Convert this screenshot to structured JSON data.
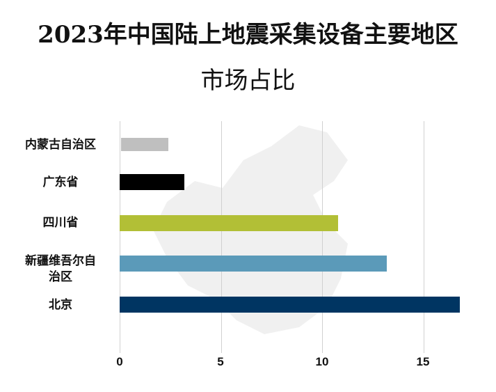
{
  "title_line1": "2023年中国陆上地震采集设备主要地区",
  "title_line2": "市场占比",
  "chart_data": {
    "type": "bar",
    "orientation": "horizontal",
    "title": "2023年中国陆上地震采集设备主要地区市场占比",
    "categories": [
      "内蒙古自治区",
      "广东省",
      "四川省",
      "新疆维吾尔自治区",
      "北京"
    ],
    "values": [
      2.4,
      3.2,
      10.8,
      13.2,
      16.8
    ],
    "colors": [
      "#bfbfbf",
      "#000000",
      "#b2bf36",
      "#5b9ab9",
      "#003562"
    ],
    "xlabel": "",
    "ylabel": "",
    "xlim": [
      0,
      17
    ],
    "xticks": [
      0,
      5,
      10,
      15
    ],
    "grid": true,
    "legend": "none"
  },
  "labels": {
    "cat0": "内蒙古自治区",
    "cat1": "广东省",
    "cat2": "四川省",
    "cat3a": "新疆维吾尔自",
    "cat3b": "治区",
    "cat4": "北京",
    "tick0": "0",
    "tick1": "5",
    "tick2": "10",
    "tick3": "15"
  }
}
